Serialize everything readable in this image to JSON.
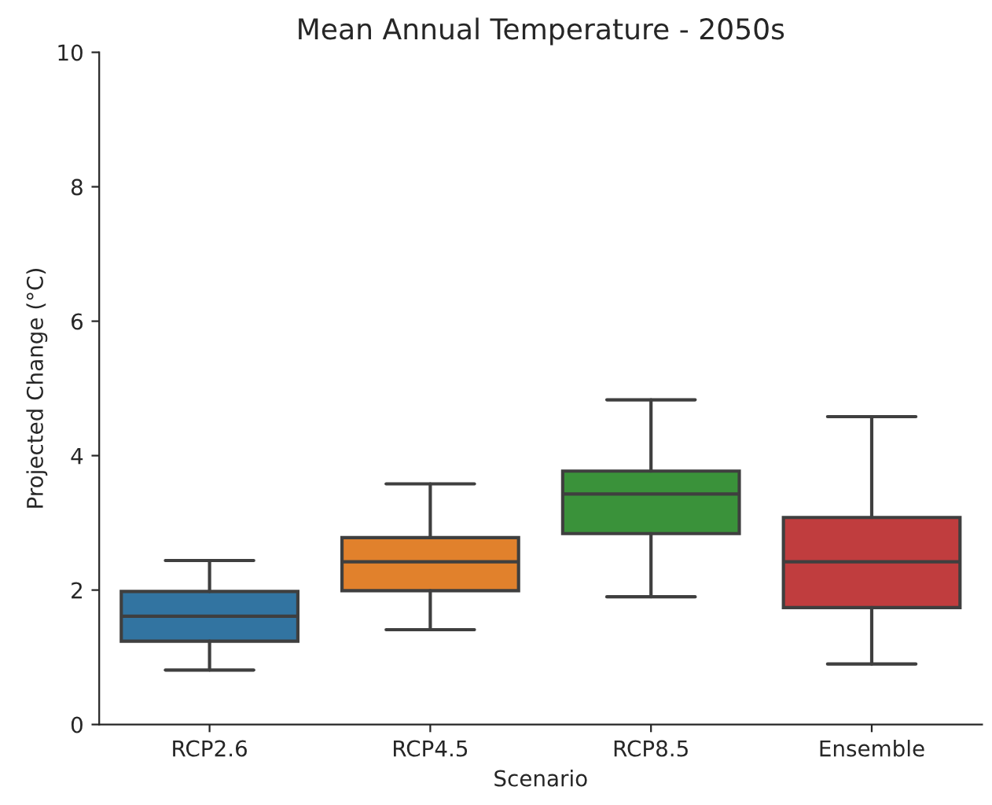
{
  "chart_data": {
    "type": "box",
    "title": "Mean Annual Temperature - 2050s",
    "xlabel": "Scenario",
    "ylabel": "Projected Change (°C)",
    "categories": [
      "RCP2.6",
      "RCP4.5",
      "RCP8.5",
      "Ensemble"
    ],
    "colors": [
      "#3274a1",
      "#e1812c",
      "#3a923a",
      "#c03d3e"
    ],
    "boxes": [
      {
        "low": 0.81,
        "q1": 1.24,
        "median": 1.61,
        "q3": 1.98,
        "high": 2.44
      },
      {
        "low": 1.41,
        "q1": 1.99,
        "median": 2.42,
        "q3": 2.78,
        "high": 3.58
      },
      {
        "low": 1.9,
        "q1": 2.84,
        "median": 3.43,
        "q3": 3.77,
        "high": 4.83
      },
      {
        "low": 0.9,
        "q1": 1.74,
        "median": 2.42,
        "q3": 3.08,
        "high": 4.58
      }
    ],
    "ylim": [
      0,
      10
    ],
    "yticks": [
      0,
      2,
      4,
      6,
      8,
      10
    ],
    "grid": false
  }
}
